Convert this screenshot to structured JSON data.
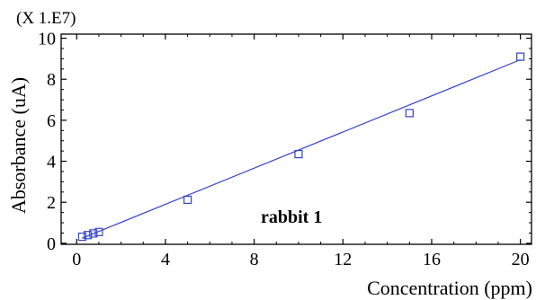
{
  "chart_data": {
    "type": "scatter",
    "title": "",
    "xlabel": "Concentration (ppm)",
    "ylabel": "Absorbance (uA)",
    "y_multiplier_label": "(X 1.E7)",
    "annotation": "rabbit 1",
    "xlim": [
      -0.7,
      20.5
    ],
    "ylim": [
      -0.05,
      10.2
    ],
    "x_ticks": [
      0,
      4,
      8,
      12,
      16,
      20
    ],
    "y_ticks": [
      0,
      2,
      4,
      6,
      8,
      10
    ],
    "grid": false,
    "series": [
      {
        "type": "scatter",
        "marker": "square",
        "color": "#3344cc",
        "x": [
          0.25,
          0.5,
          0.75,
          1.0,
          5.0,
          10.0,
          15.0,
          20.0
        ],
        "y": [
          0.32,
          0.4,
          0.48,
          0.55,
          2.12,
          4.35,
          6.35,
          9.1
        ]
      },
      {
        "type": "line",
        "color": "#3344cc",
        "x": [
          0.25,
          20.0
        ],
        "y": [
          0.25,
          8.95
        ]
      }
    ]
  }
}
